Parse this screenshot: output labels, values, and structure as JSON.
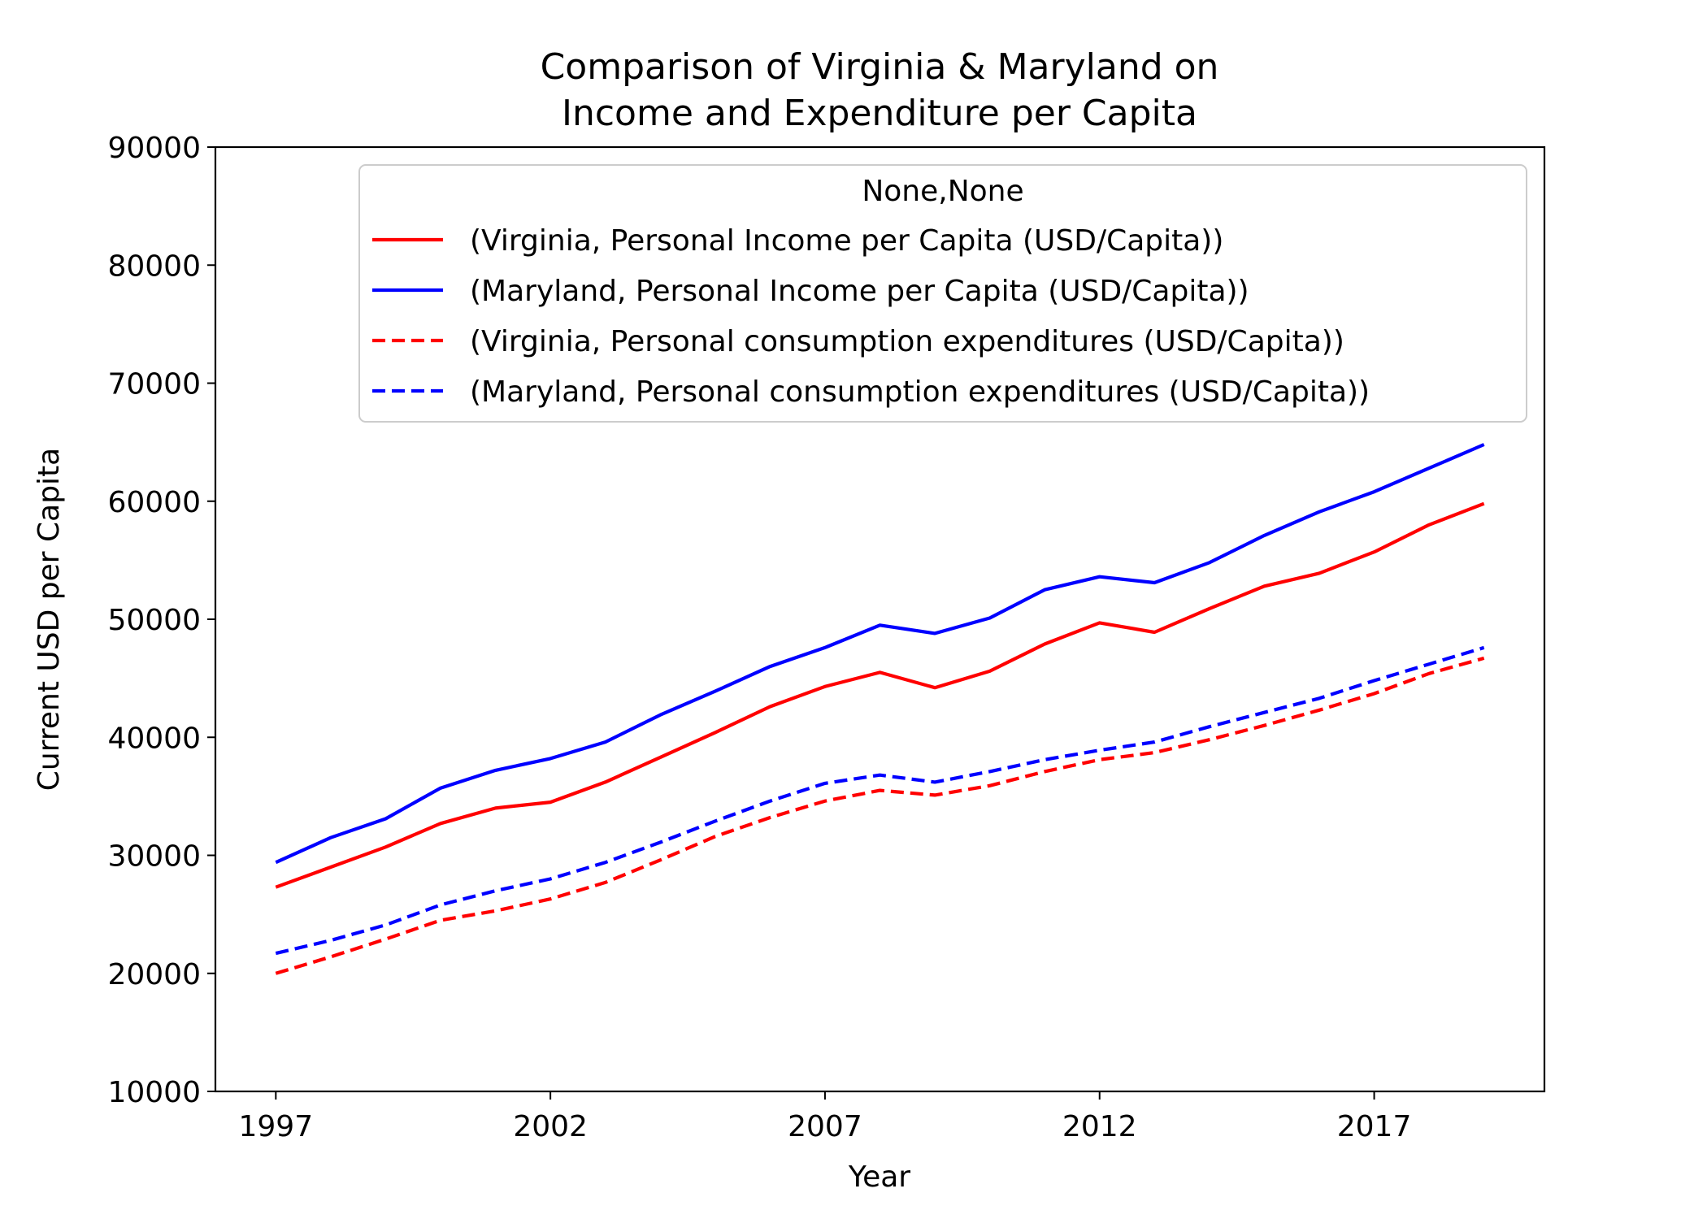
{
  "chart_data": {
    "type": "line",
    "title_line1": "Comparison of Virginia & Maryland on",
    "title_line2": "Income and Expenditure per Capita",
    "xlabel": "Year",
    "ylabel": "Current USD per Capita",
    "xlim": [
      1995.9,
      2020.1
    ],
    "ylim": [
      10000,
      90000
    ],
    "xticks": [
      1997,
      2002,
      2007,
      2012,
      2017
    ],
    "yticks": [
      10000,
      20000,
      30000,
      40000,
      50000,
      60000,
      70000,
      80000,
      90000
    ],
    "grid": false,
    "legend_title": "None,None",
    "legend_position": "top-right",
    "x": [
      1997,
      1998,
      1999,
      2000,
      2001,
      2002,
      2003,
      2004,
      2005,
      2006,
      2007,
      2008,
      2009,
      2010,
      2011,
      2012,
      2013,
      2014,
      2015,
      2016,
      2017,
      2018,
      2019
    ],
    "series": [
      {
        "name": "(Virginia, Personal Income per Capita (USD/Capita))",
        "color": "#ff0000",
        "dash": "solid",
        "values": [
          27300,
          29000,
          30700,
          32700,
          34000,
          34500,
          36200,
          38300,
          40400,
          42600,
          44300,
          45500,
          44200,
          45600,
          47900,
          49700,
          48900,
          50900,
          52800,
          53900,
          55700,
          58000,
          59800
        ]
      },
      {
        "name": "(Maryland, Personal Income per Capita (USD/Capita))",
        "color": "#0000ff",
        "dash": "solid",
        "values": [
          29400,
          31500,
          33100,
          35700,
          37200,
          38200,
          39600,
          41900,
          43900,
          46000,
          47600,
          49500,
          48800,
          50100,
          52500,
          53600,
          53100,
          54800,
          57100,
          59100,
          60800,
          62800,
          64800
        ]
      },
      {
        "name": "(Virginia, Personal consumption expenditures (USD/Capita))",
        "color": "#ff0000",
        "dash": "dashed",
        "values": [
          20000,
          21400,
          22900,
          24500,
          25300,
          26300,
          27700,
          29600,
          31600,
          33200,
          34600,
          35500,
          35100,
          35900,
          37100,
          38100,
          38700,
          39800,
          41000,
          42300,
          43700,
          45400,
          46700
        ]
      },
      {
        "name": "(Maryland, Personal consumption expenditures (USD/Capita))",
        "color": "#0000ff",
        "dash": "dashed",
        "values": [
          21700,
          22800,
          24100,
          25800,
          27000,
          28000,
          29400,
          31100,
          32900,
          34600,
          36100,
          36800,
          36200,
          37100,
          38100,
          38900,
          39600,
          40900,
          42100,
          43300,
          44800,
          46200,
          47600
        ]
      }
    ]
  }
}
